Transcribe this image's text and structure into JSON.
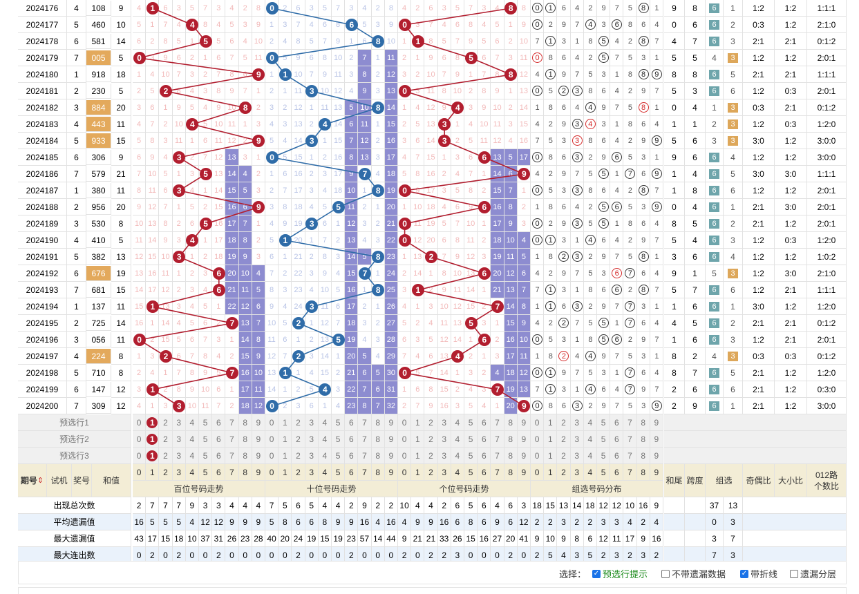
{
  "rows": [
    {
      "issue": "2024176",
      "test": "4",
      "win": "108",
      "sum": "9",
      "hl": false,
      "hundred": 1,
      "ten": 0,
      "unit": 8,
      "digits": [
        0,
        1,
        8
      ],
      "tail": "9",
      "span": "8",
      "type": "6",
      "oe": "1:2",
      "bs": "1:2",
      "r012": "1:1:1"
    },
    {
      "issue": "2024177",
      "test": "5",
      "win": "460",
      "sum": "10",
      "hl": false,
      "hundred": 4,
      "ten": 6,
      "unit": 0,
      "digits": [
        0,
        4,
        6
      ],
      "tail": "0",
      "span": "6",
      "type": "6",
      "oe": "0:3",
      "bs": "1:2",
      "r012": "2:1:0"
    },
    {
      "issue": "2024178",
      "test": "6",
      "win": "581",
      "sum": "14",
      "hl": false,
      "hundred": 5,
      "ten": 8,
      "unit": 1,
      "digits": [
        1,
        5,
        8
      ],
      "tail": "4",
      "span": "7",
      "type": "6",
      "oe": "2:1",
      "bs": "2:1",
      "r012": "0:1:2"
    },
    {
      "issue": "2024179",
      "test": "7",
      "win": "005",
      "sum": "5",
      "hl": true,
      "hundred": 0,
      "ten": 0,
      "unit": 5,
      "digits": [
        0,
        5
      ],
      "tail": "5",
      "span": "5",
      "type": "3",
      "oe": "1:2",
      "bs": "1:2",
      "r012": "2:0:1"
    },
    {
      "issue": "2024180",
      "test": "1",
      "win": "918",
      "sum": "18",
      "hl": false,
      "hundred": 9,
      "ten": 1,
      "unit": 8,
      "digits": [
        1,
        8,
        9
      ],
      "tail": "8",
      "span": "8",
      "type": "6",
      "oe": "2:1",
      "bs": "2:1",
      "r012": "1:1:1"
    },
    {
      "issue": "2024181",
      "test": "2",
      "win": "230",
      "sum": "5",
      "hl": false,
      "hundred": 2,
      "ten": 3,
      "unit": 0,
      "digits": [
        0,
        2,
        3
      ],
      "tail": "5",
      "span": "3",
      "type": "6",
      "oe": "1:2",
      "bs": "0:3",
      "r012": "2:0:1"
    },
    {
      "issue": "2024182",
      "test": "3",
      "win": "884",
      "sum": "20",
      "hl": true,
      "hundred": 8,
      "ten": 8,
      "unit": 4,
      "digits": [
        4,
        8
      ],
      "tail": "0",
      "span": "4",
      "type": "3",
      "oe": "0:3",
      "bs": "2:1",
      "r012": "0:1:2"
    },
    {
      "issue": "2024183",
      "test": "4",
      "win": "443",
      "sum": "11",
      "hl": true,
      "hundred": 4,
      "ten": 4,
      "unit": 3,
      "digits": [
        3,
        4
      ],
      "tail": "1",
      "span": "1",
      "type": "3",
      "oe": "1:2",
      "bs": "0:3",
      "r012": "1:2:0"
    },
    {
      "issue": "2024184",
      "test": "5",
      "win": "933",
      "sum": "15",
      "hl": true,
      "hundred": 9,
      "ten": 3,
      "unit": 3,
      "digits": [
        3,
        9
      ],
      "tail": "5",
      "span": "6",
      "type": "3",
      "oe": "3:0",
      "bs": "1:2",
      "r012": "3:0:0"
    },
    {
      "issue": "2024185",
      "test": "6",
      "win": "306",
      "sum": "9",
      "hl": false,
      "hundred": 3,
      "ten": 0,
      "unit": 6,
      "digits": [
        0,
        3,
        6
      ],
      "tail": "9",
      "span": "6",
      "type": "6",
      "oe": "1:2",
      "bs": "1:2",
      "r012": "3:0:0"
    },
    {
      "issue": "2024186",
      "test": "7",
      "win": "579",
      "sum": "21",
      "hl": false,
      "hundred": 5,
      "ten": 7,
      "unit": 9,
      "digits": [
        5,
        7,
        9
      ],
      "tail": "1",
      "span": "4",
      "type": "6",
      "oe": "3:0",
      "bs": "3:0",
      "r012": "1:1:1"
    },
    {
      "issue": "2024187",
      "test": "1",
      "win": "380",
      "sum": "11",
      "hl": false,
      "hundred": 3,
      "ten": 8,
      "unit": 0,
      "digits": [
        0,
        3,
        8
      ],
      "tail": "1",
      "span": "8",
      "type": "6",
      "oe": "1:2",
      "bs": "1:2",
      "r012": "2:0:1"
    },
    {
      "issue": "2024188",
      "test": "2",
      "win": "956",
      "sum": "20",
      "hl": false,
      "hundred": 9,
      "ten": 5,
      "unit": 6,
      "digits": [
        5,
        6,
        9
      ],
      "tail": "0",
      "span": "4",
      "type": "6",
      "oe": "2:1",
      "bs": "3:0",
      "r012": "2:0:1"
    },
    {
      "issue": "2024189",
      "test": "3",
      "win": "530",
      "sum": "8",
      "hl": false,
      "hundred": 5,
      "ten": 3,
      "unit": 0,
      "digits": [
        0,
        3,
        5
      ],
      "tail": "8",
      "span": "5",
      "type": "6",
      "oe": "2:1",
      "bs": "1:2",
      "r012": "2:0:1"
    },
    {
      "issue": "2024190",
      "test": "4",
      "win": "410",
      "sum": "5",
      "hl": false,
      "hundred": 4,
      "ten": 1,
      "unit": 0,
      "digits": [
        0,
        1,
        4
      ],
      "tail": "5",
      "span": "4",
      "type": "6",
      "oe": "1:2",
      "bs": "0:3",
      "r012": "1:2:0"
    },
    {
      "issue": "2024191",
      "test": "5",
      "win": "382",
      "sum": "13",
      "hl": false,
      "hundred": 3,
      "ten": 8,
      "unit": 2,
      "digits": [
        2,
        3,
        8
      ],
      "tail": "3",
      "span": "6",
      "type": "6",
      "oe": "1:2",
      "bs": "1:2",
      "r012": "1:0:2"
    },
    {
      "issue": "2024192",
      "test": "6",
      "win": "676",
      "sum": "19",
      "hl": true,
      "hundred": 6,
      "ten": 7,
      "unit": 6,
      "digits": [
        6,
        7
      ],
      "tail": "9",
      "span": "1",
      "type": "3",
      "oe": "1:2",
      "bs": "3:0",
      "r012": "2:1:0"
    },
    {
      "issue": "2024193",
      "test": "7",
      "win": "681",
      "sum": "15",
      "hl": false,
      "hundred": 6,
      "ten": 8,
      "unit": 1,
      "digits": [
        1,
        6,
        8
      ],
      "tail": "5",
      "span": "7",
      "type": "6",
      "oe": "1:2",
      "bs": "2:1",
      "r012": "1:1:1"
    },
    {
      "issue": "2024194",
      "test": "1",
      "win": "137",
      "sum": "11",
      "hl": false,
      "hundred": 1,
      "ten": 3,
      "unit": 7,
      "digits": [
        1,
        3,
        7
      ],
      "tail": "1",
      "span": "6",
      "type": "6",
      "oe": "3:0",
      "bs": "1:2",
      "r012": "1:2:0"
    },
    {
      "issue": "2024195",
      "test": "2",
      "win": "725",
      "sum": "14",
      "hl": false,
      "hundred": 7,
      "ten": 2,
      "unit": 5,
      "digits": [
        2,
        5,
        7
      ],
      "tail": "4",
      "span": "5",
      "type": "6",
      "oe": "2:1",
      "bs": "2:1",
      "r012": "0:1:2"
    },
    {
      "issue": "2024196",
      "test": "3",
      "win": "056",
      "sum": "11",
      "hl": false,
      "hundred": 0,
      "ten": 5,
      "unit": 6,
      "digits": [
        0,
        5,
        6
      ],
      "tail": "1",
      "span": "6",
      "type": "6",
      "oe": "1:2",
      "bs": "2:1",
      "r012": "2:0:1"
    },
    {
      "issue": "2024197",
      "test": "4",
      "win": "224",
      "sum": "8",
      "hl": true,
      "hundred": 2,
      "ten": 2,
      "unit": 4,
      "digits": [
        2,
        4
      ],
      "tail": "8",
      "span": "2",
      "type": "3",
      "oe": "0:3",
      "bs": "0:3",
      "r012": "0:1:2"
    },
    {
      "issue": "2024198",
      "test": "5",
      "win": "710",
      "sum": "8",
      "hl": false,
      "hundred": 7,
      "ten": 1,
      "unit": 0,
      "digits": [
        0,
        1,
        7
      ],
      "tail": "8",
      "span": "7",
      "type": "6",
      "oe": "2:1",
      "bs": "1:2",
      "r012": "1:2:0"
    },
    {
      "issue": "2024199",
      "test": "6",
      "win": "147",
      "sum": "12",
      "hl": false,
      "hundred": 1,
      "ten": 4,
      "unit": 7,
      "digits": [
        1,
        4,
        7
      ],
      "tail": "2",
      "span": "6",
      "type": "6",
      "oe": "2:1",
      "bs": "1:2",
      "r012": "0:3:0"
    },
    {
      "issue": "2024200",
      "test": "7",
      "win": "309",
      "sum": "12",
      "hl": false,
      "hundred": 3,
      "ten": 0,
      "unit": 9,
      "digits": [
        0,
        3,
        9
      ],
      "tail": "2",
      "span": "9",
      "type": "6",
      "oe": "2:1",
      "bs": "1:2",
      "r012": "3:0:0"
    }
  ],
  "preselect": {
    "rows": [
      "预选行1",
      "预选行2",
      "预选行3"
    ],
    "digits": [
      "0",
      "1",
      "2",
      "3",
      "4",
      "5",
      "6",
      "7",
      "8",
      "9"
    ],
    "marked": "1"
  },
  "headers": {
    "issue": "期号",
    "sort_icon": "sort-arrows-icon",
    "test": "试机",
    "win": "奖号",
    "sum": "和值",
    "hundred_trend": "百位号码走势",
    "ten_trend": "十位号码走势",
    "unit_trend": "个位号码走势",
    "group_dist": "组选号码分布",
    "tail": "和尾",
    "span": "跨度",
    "group": "组选",
    "oe": "奇偶比",
    "bs": "大小比",
    "r012": "012路个数比"
  },
  "stats": [
    {
      "label": "出现总次数",
      "hundred": [
        "2",
        "7",
        "7",
        "7",
        "9",
        "3",
        "3",
        "4",
        "4",
        "4"
      ],
      "ten": [
        "7",
        "5",
        "6",
        "5",
        "4",
        "4",
        "2",
        "9",
        "2",
        "2"
      ],
      "unit": [
        "10",
        "4",
        "4",
        "2",
        "6",
        "5",
        "6",
        "4",
        "6",
        "3"
      ],
      "group": [
        "18",
        "15",
        "13",
        "14",
        "18",
        "12",
        "12",
        "10",
        "16",
        "9"
      ],
      "g6": "37",
      "g3": "13"
    },
    {
      "label": "平均遗漏值",
      "hundred": [
        "16",
        "5",
        "5",
        "5",
        "4",
        "12",
        "12",
        "9",
        "9",
        "9"
      ],
      "ten": [
        "5",
        "8",
        "6",
        "6",
        "8",
        "9",
        "9",
        "16",
        "4",
        "16"
      ],
      "unit": [
        "4",
        "9",
        "9",
        "16",
        "6",
        "8",
        "6",
        "9",
        "6",
        "12"
      ],
      "group": [
        "2",
        "2",
        "3",
        "2",
        "2",
        "3",
        "3",
        "4",
        "2",
        "4"
      ],
      "g6": "0",
      "g3": "3"
    },
    {
      "label": "最大遗漏值",
      "hundred": [
        "43",
        "17",
        "15",
        "18",
        "10",
        "37",
        "31",
        "26",
        "23",
        "28"
      ],
      "ten": [
        "40",
        "20",
        "24",
        "19",
        "15",
        "19",
        "23",
        "57",
        "14",
        "44"
      ],
      "unit": [
        "9",
        "21",
        "21",
        "33",
        "26",
        "15",
        "16",
        "27",
        "20",
        "41"
      ],
      "group": [
        "9",
        "10",
        "9",
        "8",
        "6",
        "12",
        "11",
        "17",
        "9",
        "16"
      ],
      "g6": "3",
      "g3": "7"
    },
    {
      "label": "最大连出数",
      "hundred": [
        "0",
        "2",
        "0",
        "2",
        "0",
        "0",
        "2",
        "0",
        "0",
        "0"
      ],
      "ten": [
        "0",
        "0",
        "2",
        "0",
        "0",
        "0",
        "2",
        "0",
        "0",
        "0"
      ],
      "unit": [
        "2",
        "0",
        "2",
        "2",
        "3",
        "0",
        "0",
        "0",
        "2",
        "0"
      ],
      "group": [
        "2",
        "5",
        "4",
        "3",
        "5",
        "2",
        "3",
        "2",
        "3",
        "2"
      ],
      "g6": "7",
      "g3": "3"
    }
  ],
  "options": {
    "label": "选择：",
    "items": [
      {
        "text": "预选行提示",
        "checked": true
      },
      {
        "text": "不带遗漏数据",
        "checked": false
      },
      {
        "text": "带折线",
        "checked": true
      },
      {
        "text": "遗漏分层",
        "checked": false
      }
    ]
  },
  "colors": {
    "red": "#b21e2f",
    "blue": "#2f6ca8",
    "block": "#8d8cd0",
    "highlight": "#e3a95c",
    "teal": "#6ea5ab"
  }
}
